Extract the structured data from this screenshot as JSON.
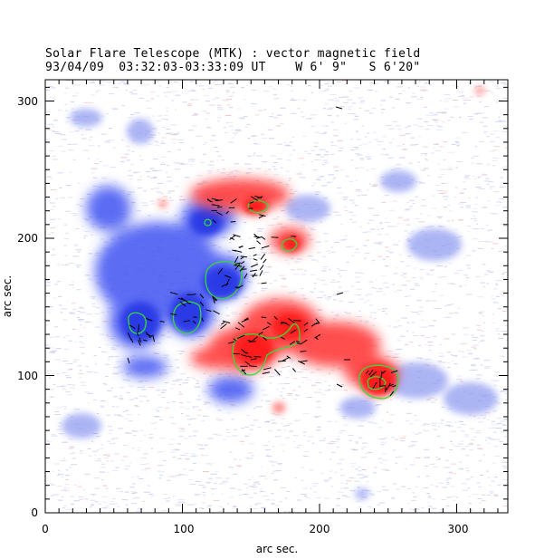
{
  "title": {
    "line1": "Solar Flare Telescope (MTK) : vector magnetic field",
    "line2": "93/04/09  03:32:03-03:33:09 UT    W 6' 9\"   S 6'20\""
  },
  "axes": {
    "xlabel": "arc sec.",
    "ylabel": "arc sec.",
    "x_ticks": [
      "0",
      "100",
      "200",
      "300"
    ],
    "y_ticks": [
      "0",
      "100",
      "200",
      "300"
    ],
    "xlim": [
      0,
      340
    ],
    "ylim": [
      0,
      315
    ]
  },
  "colors": {
    "positive": "#ff2b2b",
    "negative": "#3a4cf0",
    "contour": "#33dd33",
    "background_noise": "#c8ccf4",
    "vectors": "#000000"
  }
}
